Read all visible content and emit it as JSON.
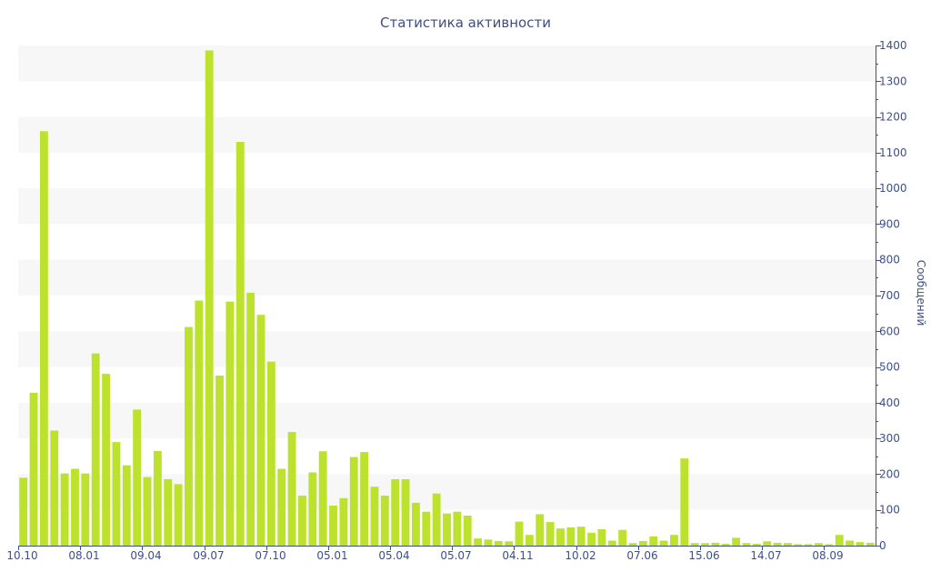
{
  "colors": {
    "bar": "#bde22d",
    "band": "#f7f7f7",
    "axis": "#3d4f86"
  },
  "chart_data": {
    "type": "bar",
    "title": "Статистика активности",
    "ylabel": "Сообщений",
    "xlabel": "",
    "ylim": [
      0,
      1400
    ],
    "y_ticks": [
      0,
      100,
      200,
      300,
      400,
      500,
      600,
      700,
      800,
      900,
      1000,
      1100,
      1200,
      1300,
      1400
    ],
    "y_axis_side": "right",
    "x_tick_labels": [
      {
        "label": "10.10",
        "index": 0
      },
      {
        "label": "08.01",
        "index": 6
      },
      {
        "label": "09.04",
        "index": 12
      },
      {
        "label": "09.07",
        "index": 18
      },
      {
        "label": "07.10",
        "index": 24
      },
      {
        "label": "05.01",
        "index": 30
      },
      {
        "label": "05.04",
        "index": 36
      },
      {
        "label": "05.07",
        "index": 42
      },
      {
        "label": "04.11",
        "index": 48
      },
      {
        "label": "10.02",
        "index": 54
      },
      {
        "label": "07.06",
        "index": 60
      },
      {
        "label": "15.06",
        "index": 66
      },
      {
        "label": "14.07",
        "index": 72
      },
      {
        "label": "08.09",
        "index": 78
      }
    ],
    "values": [
      190,
      428,
      1160,
      322,
      202,
      215,
      202,
      538,
      481,
      290,
      225,
      381,
      192,
      265,
      186,
      172,
      612,
      686,
      1386,
      476,
      683,
      1130,
      708,
      646,
      515,
      215,
      318,
      140,
      205,
      264,
      112,
      133,
      248,
      262,
      165,
      140,
      186,
      186,
      120,
      95,
      146,
      90,
      95,
      84,
      20,
      17,
      13,
      12,
      67,
      30,
      88,
      66,
      48,
      51,
      53,
      36,
      46,
      14,
      44,
      7,
      13,
      26,
      14,
      30,
      244,
      7,
      7,
      8,
      5,
      22,
      7,
      5,
      12,
      8,
      7,
      4,
      4,
      7,
      4,
      30,
      14,
      10,
      8
    ]
  }
}
